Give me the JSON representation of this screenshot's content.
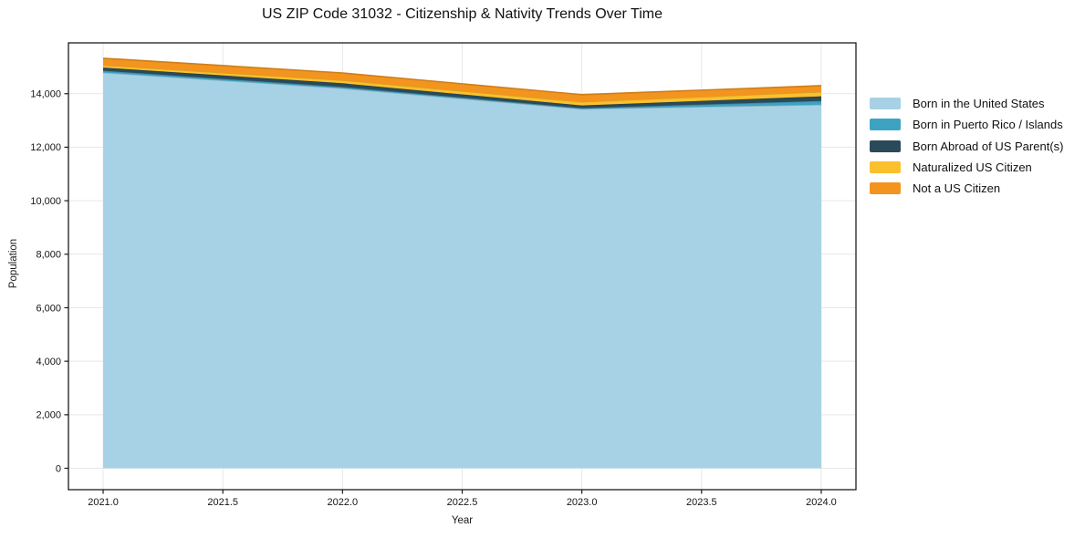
{
  "chart_data": {
    "type": "area",
    "stacked": true,
    "title": "US ZIP Code 31032 - Citizenship & Nativity Trends Over Time",
    "xlabel": "Year",
    "ylabel": "Population",
    "x": [
      2021,
      2022,
      2023,
      2024
    ],
    "series": [
      {
        "name": "Born in the United States",
        "color": "#A7D1E5",
        "values": [
          14790,
          14200,
          13430,
          13590
        ]
      },
      {
        "name": "Born in Puerto Rico / Islands",
        "color": "#3EA2C2",
        "values": [
          70,
          50,
          30,
          140
        ]
      },
      {
        "name": "Born Abroad of US Parent(s)",
        "color": "#2B4A59",
        "values": [
          115,
          140,
          100,
          170
        ]
      },
      {
        "name": "Naturalized US Citizen",
        "color": "#FBC02D",
        "values": [
          90,
          115,
          135,
          170
        ]
      },
      {
        "name": "Not a US Citizen",
        "color": "#F3941E",
        "values": [
          260,
          270,
          270,
          230
        ]
      }
    ],
    "x_tick_labels": [
      "2021.0",
      "2021.5",
      "2022.0",
      "2022.5",
      "2023.0",
      "2023.5",
      "2024.0"
    ],
    "x_tick_values": [
      2021,
      2021.5,
      2022,
      2022.5,
      2023,
      2023.5,
      2024
    ],
    "y_tick_labels": [
      "0",
      "2,000",
      "4,000",
      "6,000",
      "8,000",
      "10,000",
      "12,000",
      "14,000"
    ],
    "y_tick_values": [
      0,
      2000,
      4000,
      6000,
      8000,
      10000,
      12000,
      14000
    ],
    "xlim": [
      2020.855,
      2024.145
    ],
    "ylim": [
      -800,
      15900
    ],
    "grid": true,
    "legend_position": "right-outside",
    "colors": {
      "grid": "#e7e7e7",
      "spine": "#1c1c1c",
      "background": "#ffffff"
    }
  }
}
